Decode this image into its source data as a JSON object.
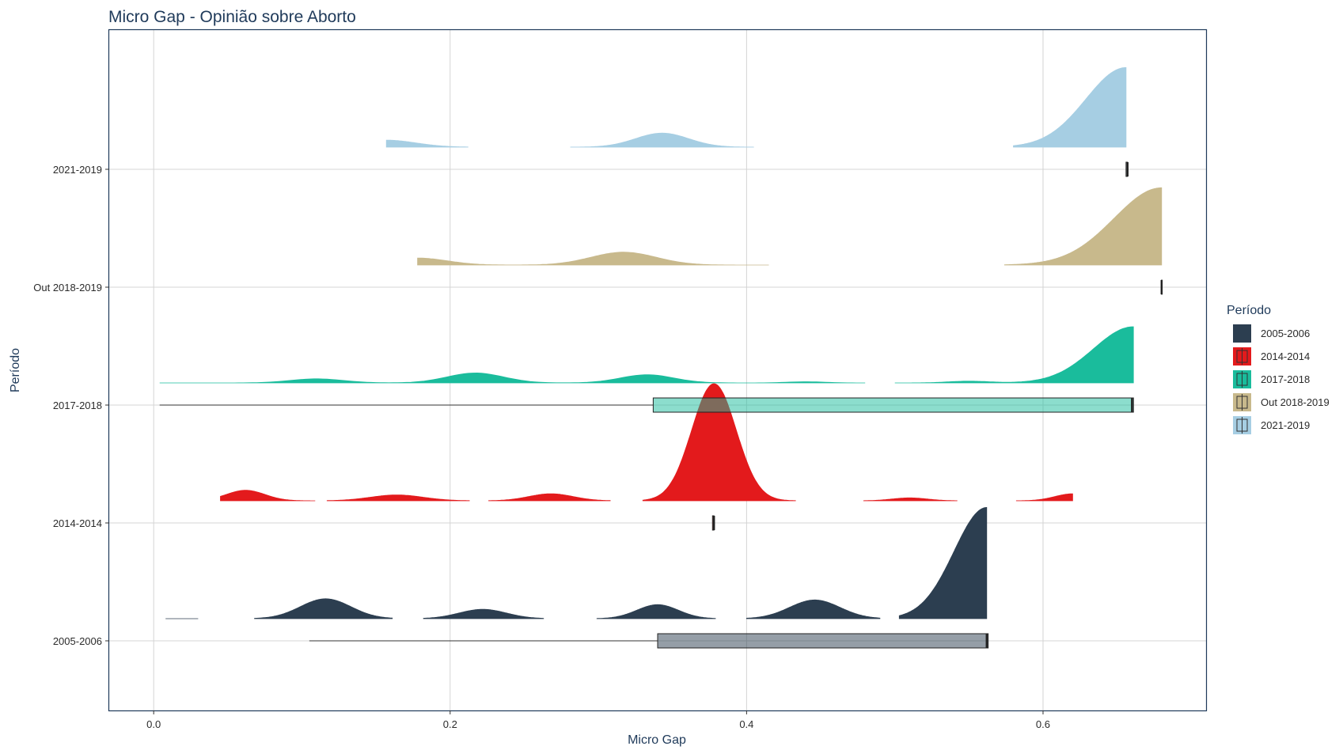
{
  "chart_data": {
    "type": "raincloud",
    "title": "Micro Gap - Opinião sobre Aborto",
    "xlabel": "Micro Gap",
    "ylabel": "Período",
    "xlim": [
      -0.03,
      0.71
    ],
    "x_ticks": [
      {
        "value": 0.0,
        "label": "0.0"
      },
      {
        "value": 0.2,
        "label": "0.2"
      },
      {
        "value": 0.4,
        "label": "0.4"
      },
      {
        "value": 0.6,
        "label": "0.6"
      }
    ],
    "grid": true,
    "legend": {
      "title": "Período",
      "position": "right",
      "entries": [
        "2005-2006",
        "2014-2014",
        "2017-2018",
        "Out 2018-2019",
        "2021-2019"
      ]
    },
    "series": [
      {
        "name": "2005-2006",
        "color": "#2c3e50",
        "boxplot": {
          "min": 0.105,
          "q1": 0.34,
          "median": 0.562,
          "q3": 0.563,
          "max": 0.563
        },
        "density_peak": 0.95,
        "density_segments": [
          {
            "xmin": 0.008,
            "xmax": 0.03,
            "bumps": []
          },
          {
            "xmin": 0.068,
            "xmax": 0.161,
            "bumps": [
              {
                "mu": 0.116,
                "sigma": 0.017,
                "h": 0.17
              }
            ]
          },
          {
            "xmin": 0.182,
            "xmax": 0.263,
            "bumps": [
              {
                "mu": 0.222,
                "sigma": 0.016,
                "h": 0.08
              }
            ]
          },
          {
            "xmin": 0.299,
            "xmax": 0.379,
            "bumps": [
              {
                "mu": 0.34,
                "sigma": 0.014,
                "h": 0.12
              }
            ]
          },
          {
            "xmin": 0.4,
            "xmax": 0.49,
            "bumps": [
              {
                "mu": 0.446,
                "sigma": 0.017,
                "h": 0.16
              }
            ]
          },
          {
            "xmin": 0.503,
            "xmax": 0.562,
            "bumps": [
              {
                "mu": 0.562,
                "sigma": 0.022,
                "h": 0.95
              }
            ]
          }
        ]
      },
      {
        "name": "2014-2014",
        "color": "#e31a1c",
        "boxplot": {
          "min": 0.377,
          "q1": 0.377,
          "median": 0.378,
          "q3": 0.378,
          "max": 0.378
        },
        "density_peak": 1.0,
        "density_segments": [
          {
            "xmin": 0.045,
            "xmax": 0.109,
            "bumps": [
              {
                "mu": 0.062,
                "sigma": 0.013,
                "h": 0.09
              }
            ]
          },
          {
            "xmin": 0.117,
            "xmax": 0.213,
            "bumps": [
              {
                "mu": 0.164,
                "sigma": 0.018,
                "h": 0.05
              }
            ]
          },
          {
            "xmin": 0.226,
            "xmax": 0.308,
            "bumps": [
              {
                "mu": 0.268,
                "sigma": 0.015,
                "h": 0.06
              }
            ]
          },
          {
            "xmin": 0.33,
            "xmax": 0.433,
            "bumps": [
              {
                "mu": 0.378,
                "sigma": 0.015,
                "h": 1.0
              }
            ]
          },
          {
            "xmin": 0.479,
            "xmax": 0.542,
            "bumps": [
              {
                "mu": 0.51,
                "sigma": 0.012,
                "h": 0.025
              }
            ]
          },
          {
            "xmin": 0.582,
            "xmax": 0.62,
            "bumps": [
              {
                "mu": 0.62,
                "sigma": 0.012,
                "h": 0.06
              }
            ]
          }
        ]
      },
      {
        "name": "2017-2018",
        "color": "#1abc9c",
        "boxplot": {
          "min": 0.004,
          "q1": 0.337,
          "median": 0.66,
          "q3": 0.661,
          "max": 0.661
        },
        "density_peak": 0.48,
        "density_segments": [
          {
            "xmin": 0.004,
            "xmax": 0.48,
            "bumps": [
              {
                "mu": 0.11,
                "sigma": 0.018,
                "h": 0.035
              },
              {
                "mu": 0.217,
                "sigma": 0.019,
                "h": 0.085
              },
              {
                "mu": 0.333,
                "sigma": 0.018,
                "h": 0.07
              },
              {
                "mu": 0.44,
                "sigma": 0.013,
                "h": 0.01
              }
            ]
          },
          {
            "xmin": 0.5,
            "xmax": 0.661,
            "bumps": [
              {
                "mu": 0.55,
                "sigma": 0.014,
                "h": 0.015
              },
              {
                "mu": 0.661,
                "sigma": 0.027,
                "h": 0.48
              }
            ]
          }
        ]
      },
      {
        "name": "Out 2018-2019",
        "color": "#c8b98c",
        "boxplot": {
          "min": 0.68,
          "q1": 0.68,
          "median": 0.68,
          "q3": 0.68,
          "max": 0.68
        },
        "density_peak": 0.66,
        "density_segments": [
          {
            "xmin": 0.178,
            "xmax": 0.415,
            "bumps": [
              {
                "mu": 0.178,
                "sigma": 0.02,
                "h": 0.06
              },
              {
                "mu": 0.317,
                "sigma": 0.022,
                "h": 0.11
              }
            ]
          },
          {
            "xmin": 0.574,
            "xmax": 0.68,
            "bumps": [
              {
                "mu": 0.68,
                "sigma": 0.032,
                "h": 0.66
              }
            ]
          }
        ]
      },
      {
        "name": "2021-2019",
        "color": "#a6cee3",
        "boxplot": {
          "min": 0.656,
          "q1": 0.656,
          "median": 0.657,
          "q3": 0.657,
          "max": 0.657
        },
        "density_peak": 0.68,
        "density_segments": [
          {
            "xmin": 0.157,
            "xmax": 0.212,
            "bumps": [
              {
                "mu": 0.157,
                "sigma": 0.02,
                "h": 0.06
              }
            ]
          },
          {
            "xmin": 0.281,
            "xmax": 0.405,
            "bumps": [
              {
                "mu": 0.343,
                "sigma": 0.018,
                "h": 0.12
              }
            ]
          },
          {
            "xmin": 0.58,
            "xmax": 0.656,
            "bumps": [
              {
                "mu": 0.656,
                "sigma": 0.027,
                "h": 0.68
              }
            ]
          }
        ]
      }
    ]
  }
}
